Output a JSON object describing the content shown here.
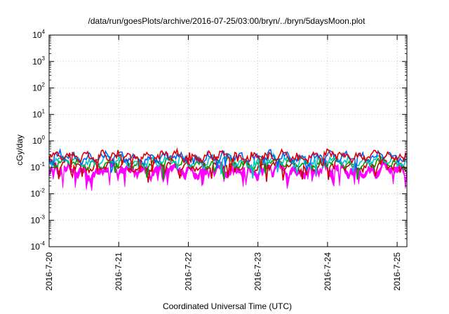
{
  "chart_data": {
    "type": "line",
    "title": "/data/run/goesPlots/archive/2016-07-25/03:00/bryn/../bryn/5daysMoon.plot",
    "xlabel": "Coordinated Universal Time (UTC)",
    "ylabel": "cGy/day",
    "yscale": "log",
    "ylim": [
      0.0001,
      10000
    ],
    "yticks": [
      {
        "base": "10",
        "exp": "-4"
      },
      {
        "base": "10",
        "exp": "-3"
      },
      {
        "base": "10",
        "exp": "-2"
      },
      {
        "base": "10",
        "exp": "-1"
      },
      {
        "base": "10",
        "exp": "0"
      },
      {
        "base": "10",
        "exp": "1"
      },
      {
        "base": "10",
        "exp": "2"
      },
      {
        "base": "10",
        "exp": "3"
      },
      {
        "base": "10",
        "exp": "4"
      }
    ],
    "xlim_days": [
      0,
      5.14
    ],
    "xticks": [
      {
        "label": "2016-7-20",
        "day": 0
      },
      {
        "label": "2016-7-21",
        "day": 1
      },
      {
        "label": "2016-7-22",
        "day": 2
      },
      {
        "label": "2016-7-23",
        "day": 3
      },
      {
        "label": "2016-7-24",
        "day": 4
      },
      {
        "label": "2016-7-25",
        "day": 5
      }
    ],
    "grid": true,
    "series": [
      {
        "color": "#ff00ff",
        "level": 0.095,
        "amp": 0.28,
        "kind": "band",
        "seed": 7
      },
      {
        "color": "#c80000",
        "level": 0.115,
        "amp": 0.22,
        "kind": "line",
        "seed": 3
      },
      {
        "color": "#00a000",
        "level": 0.14,
        "amp": 0.22,
        "kind": "line",
        "seed": 5
      },
      {
        "color": "#00c8c8",
        "level": 0.17,
        "amp": 0.24,
        "kind": "line",
        "seed": 11
      },
      {
        "color": "#0060ff",
        "level": 0.24,
        "amp": 0.26,
        "kind": "line",
        "seed": 13
      },
      {
        "color": "#e00000",
        "level": 0.27,
        "amp": 0.25,
        "kind": "line",
        "seed": 17
      }
    ]
  }
}
